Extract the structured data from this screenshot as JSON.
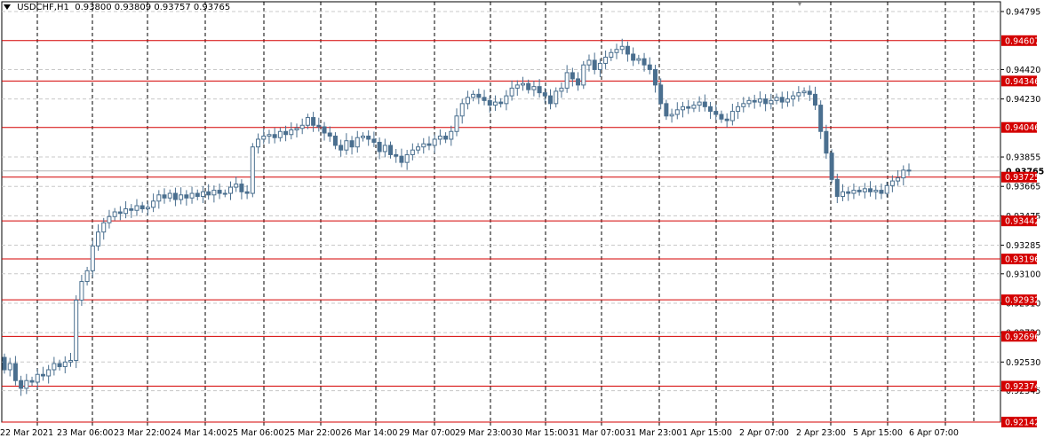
{
  "chart_title": {
    "symbol": "USDCHF,H1",
    "open": "0.93800",
    "high": "0.93809",
    "low": "0.93757",
    "close": "0.93765"
  },
  "colors": {
    "candle": "#4a6f8f",
    "level_line": "#d40000",
    "grid": "#000000",
    "current_price_line": "#b5b5b5"
  },
  "chart_data": {
    "type": "candlestick",
    "ylim": [
      0.92142,
      0.94795
    ],
    "y_tick_labels": [
      "0.94795",
      "0.94420",
      "0.94230",
      "0.93855",
      "0.93665",
      "0.93475",
      "0.93285",
      "0.93100",
      "0.92910",
      "0.92720",
      "0.92530",
      "0.92345"
    ],
    "x_tick_labels": [
      "22 Mar 2021",
      "23 Mar 06:00",
      "23 Mar 22:00",
      "24 Mar 14:00",
      "25 Mar 06:00",
      "25 Mar 22:00",
      "26 Mar 14:00",
      "29 Mar 07:00",
      "29 Mar 23:00",
      "30 Mar 15:00",
      "31 Mar 07:00",
      "31 Mar 23:00",
      "1 Apr 15:00",
      "2 Apr 07:00",
      "2 Apr 23:00",
      "5 Apr 15:00",
      "6 Apr 07:00"
    ],
    "levels": [
      "0.94607",
      "0.94346",
      "0.94046",
      "0.93725",
      "0.93442",
      "0.93196",
      "0.92932",
      "0.92696",
      "0.92374",
      "0.92142"
    ],
    "current_price": "0.93765",
    "series_close": [
      0.9248,
      0.9252,
      0.9241,
      0.9236,
      0.9241,
      0.924,
      0.9245,
      0.9244,
      0.9248,
      0.9252,
      0.925,
      0.9253,
      0.9254,
      0.9293,
      0.9305,
      0.9312,
      0.9328,
      0.9337,
      0.9343,
      0.9347,
      0.935,
      0.9349,
      0.9352,
      0.9351,
      0.9354,
      0.9352,
      0.9353,
      0.9357,
      0.9361,
      0.9359,
      0.9362,
      0.9358,
      0.9361,
      0.9359,
      0.9362,
      0.936,
      0.9363,
      0.9361,
      0.9364,
      0.9362,
      0.9362,
      0.9366,
      0.9368,
      0.9363,
      0.9362,
      0.9392,
      0.9397,
      0.9399,
      0.94,
      0.9398,
      0.9402,
      0.94,
      0.9403,
      0.9404,
      0.9406,
      0.9411,
      0.9406,
      0.9405,
      0.9401,
      0.9399,
      0.9393,
      0.939,
      0.9396,
      0.9392,
      0.9398,
      0.9399,
      0.9397,
      0.9395,
      0.9389,
      0.9393,
      0.9387,
      0.9386,
      0.9382,
      0.9387,
      0.939,
      0.9392,
      0.9394,
      0.9393,
      0.9397,
      0.9399,
      0.9397,
      0.9402,
      0.9412,
      0.942,
      0.9424,
      0.9426,
      0.9424,
      0.9422,
      0.9419,
      0.9421,
      0.942,
      0.9425,
      0.943,
      0.9432,
      0.9433,
      0.9429,
      0.9431,
      0.9427,
      0.9425,
      0.942,
      0.9428,
      0.943,
      0.944,
      0.9436,
      0.9432,
      0.9445,
      0.9448,
      0.9442,
      0.9446,
      0.945,
      0.9453,
      0.9455,
      0.9457,
      0.9452,
      0.9448,
      0.9449,
      0.9445,
      0.9442,
      0.9432,
      0.942,
      0.9412,
      0.9413,
      0.9416,
      0.9418,
      0.9417,
      0.9419,
      0.9421,
      0.9418,
      0.9415,
      0.9413,
      0.941,
      0.9409,
      0.9415,
      0.9418,
      0.942,
      0.9422,
      0.9421,
      0.9423,
      0.942,
      0.9422,
      0.9424,
      0.9421,
      0.9423,
      0.9425,
      0.9427,
      0.9428,
      0.9426,
      0.9419,
      0.9402,
      0.9388,
      0.9371,
      0.936,
      0.9363,
      0.9362,
      0.9364,
      0.9363,
      0.9365,
      0.9363,
      0.9364,
      0.9362,
      0.9367,
      0.937,
      0.9372,
      0.9377,
      0.9377
    ]
  }
}
